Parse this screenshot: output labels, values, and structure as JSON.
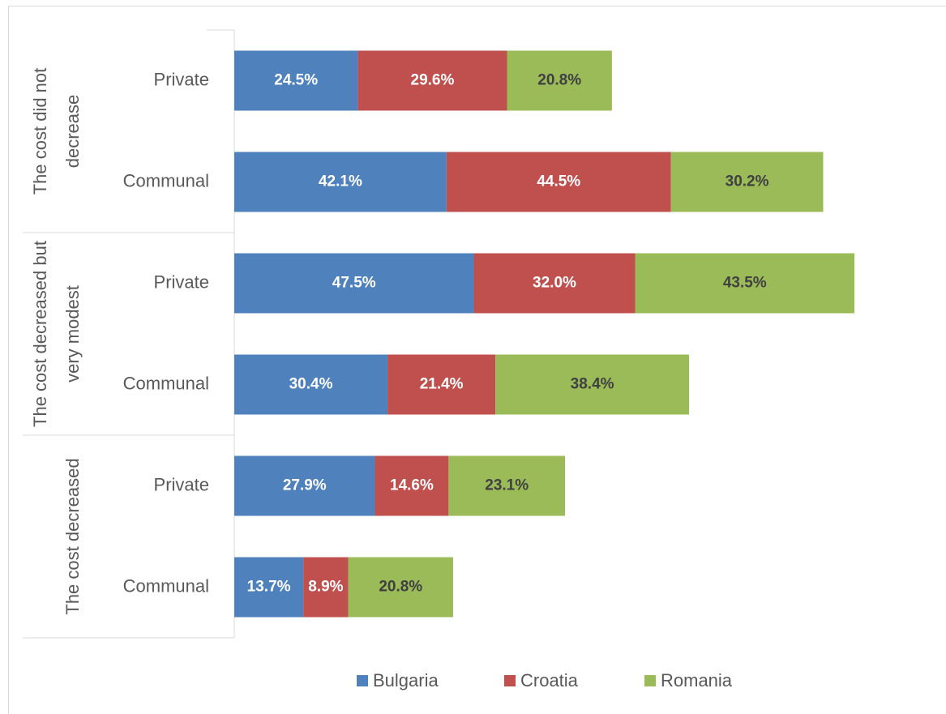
{
  "chart_data": {
    "type": "stacked-bar-horizontal",
    "groups": [
      "The cost did not decrease",
      "The cost decreased but very modest",
      "The cost decreased"
    ],
    "categories": [
      "Private",
      "Communal",
      "Private",
      "Communal",
      "Private",
      "Communal"
    ],
    "series": [
      {
        "name": "Bulgaria",
        "color": "#4f81bd",
        "values": [
          24.5,
          42.1,
          47.5,
          30.4,
          27.9,
          13.7
        ],
        "value_labels": [
          "24.5%",
          "42.1%",
          "47.5%",
          "30.4%",
          "27.9%",
          "13.7%"
        ]
      },
      {
        "name": "Croatia",
        "color": "#c0504d",
        "values": [
          29.6,
          44.5,
          32.0,
          21.4,
          14.6,
          8.9
        ],
        "value_labels": [
          "29.6%",
          "44.5%",
          "32.0%",
          "21.4%",
          "14.6%",
          "8.9%"
        ]
      },
      {
        "name": "Romania",
        "color": "#9bbb59",
        "values": [
          20.8,
          30.2,
          43.5,
          38.4,
          23.1,
          20.8
        ],
        "value_labels": [
          "20.8%",
          "30.2%",
          "43.5%",
          "38.4%",
          "23.1%",
          "20.8%"
        ]
      }
    ],
    "legend": "bottom"
  }
}
